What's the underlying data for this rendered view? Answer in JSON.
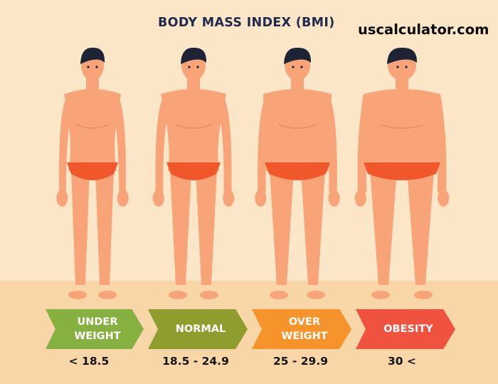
{
  "header": {
    "title": "BODY MASS INDEX (BMI)",
    "site": "uscalculator.com"
  },
  "colors": {
    "background": "#fbe6c8",
    "floor": "#f8d6a8",
    "skin": "#f8a478",
    "skin_shadow": "#ee8a62",
    "hair": "#1c2436",
    "underwear": "#f0582c"
  },
  "categories": [
    {
      "label": "UNDER\nWEIGHT",
      "range": "< 18.5",
      "color": "#86b040"
    },
    {
      "label": "NORMAL",
      "range": "18.5 - 24.9",
      "color": "#8e9d2e"
    },
    {
      "label": "OVER\nWEIGHT",
      "range": "25 - 29.9",
      "color": "#f6932a"
    },
    {
      "label": "OBESITY",
      "range": "30 <",
      "color": "#ef5340"
    }
  ]
}
